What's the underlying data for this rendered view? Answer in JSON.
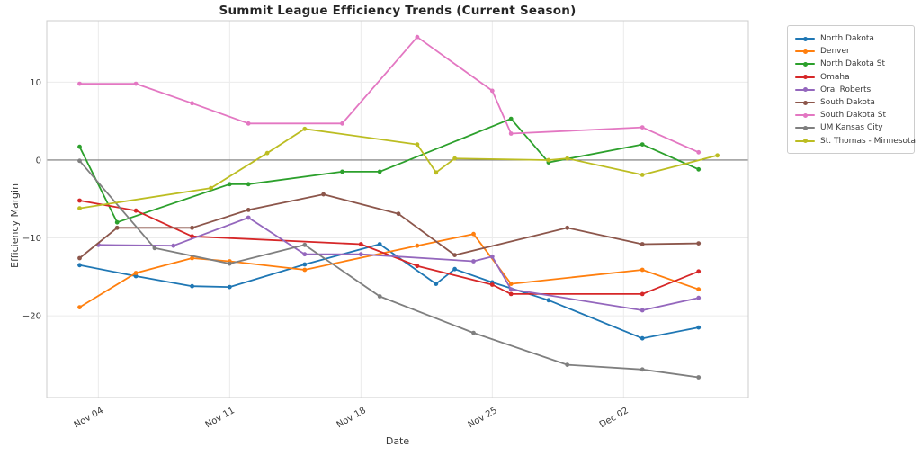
{
  "figure": {
    "background": "#ffffff",
    "plot_background": "#ffffff",
    "grid_color": "#ebebeb",
    "spine_color": "#cccccc",
    "zero_line_color": "#777777",
    "tick_label_color": "#3a3a3a",
    "title_color": "#262626"
  },
  "chart_data": {
    "type": "line",
    "title": "Summit League Efficiency Trends (Current Season)",
    "xlabel": "Date",
    "ylabel": "Efficiency Margin",
    "legend_position": "outside-top-right",
    "grid": true,
    "zero_line": true,
    "date_origin": "Nov 03",
    "xlim_days": [
      -1.75,
      35.65
    ],
    "ylim": [
      -30.5,
      17.9
    ],
    "x_ticks": [
      {
        "label": "Nov 04",
        "date": "Nov 04"
      },
      {
        "label": "Nov 11",
        "date": "Nov 11"
      },
      {
        "label": "Nov 18",
        "date": "Nov 18"
      },
      {
        "label": "Nov 25",
        "date": "Nov 25"
      },
      {
        "label": "Dec 02",
        "date": "Dec 02"
      }
    ],
    "y_ticks": [
      {
        "label": "10",
        "value": 10
      },
      {
        "label": "0",
        "value": 0
      },
      {
        "label": "−10",
        "value": -10
      },
      {
        "label": "−20",
        "value": -20
      }
    ],
    "series": [
      {
        "id": "north-dakota",
        "name": "North Dakota",
        "color": "#1f77b4",
        "points": [
          [
            "Nov 03",
            -13.5
          ],
          [
            "Nov 06",
            -14.9
          ],
          [
            "Nov 09",
            -16.2
          ],
          [
            "Nov 11",
            -16.3
          ],
          [
            "Nov 15",
            -13.4
          ],
          [
            "Nov 19",
            -10.8
          ],
          [
            "Nov 22",
            -15.9
          ],
          [
            "Nov 23",
            -14.0
          ],
          [
            "Nov 25",
            -15.7
          ],
          [
            "Nov 28",
            -18.0
          ],
          [
            "Dec 03",
            -22.9
          ],
          [
            "Dec 06",
            -21.5
          ]
        ]
      },
      {
        "id": "denver",
        "name": "Denver",
        "color": "#ff7f0e",
        "points": [
          [
            "Nov 03",
            -18.9
          ],
          [
            "Nov 06",
            -14.5
          ],
          [
            "Nov 09",
            -12.6
          ],
          [
            "Nov 11",
            -13.0
          ],
          [
            "Nov 15",
            -14.1
          ],
          [
            "Nov 21",
            -11.0
          ],
          [
            "Nov 24",
            -9.5
          ],
          [
            "Nov 26",
            -15.9
          ],
          [
            "Dec 03",
            -14.1
          ],
          [
            "Dec 06",
            -16.6
          ]
        ]
      },
      {
        "id": "north-dakota-st",
        "name": "North Dakota St",
        "color": "#2ca02c",
        "points": [
          [
            "Nov 03",
            1.7
          ],
          [
            "Nov 05",
            -8.0
          ],
          [
            "Nov 11",
            -3.1
          ],
          [
            "Nov 12",
            -3.1
          ],
          [
            "Nov 17",
            -1.5
          ],
          [
            "Nov 19",
            -1.5
          ],
          [
            "Nov 26",
            5.3
          ],
          [
            "Nov 28",
            -0.3
          ],
          [
            "Dec 03",
            2.0
          ],
          [
            "Dec 06",
            -1.2
          ]
        ]
      },
      {
        "id": "omaha",
        "name": "Omaha",
        "color": "#d62728",
        "points": [
          [
            "Nov 03",
            -5.2
          ],
          [
            "Nov 06",
            -6.5
          ],
          [
            "Nov 09",
            -9.8
          ],
          [
            "Nov 18",
            -10.8
          ],
          [
            "Nov 21",
            -13.6
          ],
          [
            "Nov 25",
            -16.0
          ],
          [
            "Nov 26",
            -17.2
          ],
          [
            "Dec 03",
            -17.2
          ],
          [
            "Dec 06",
            -14.3
          ]
        ]
      },
      {
        "id": "oral-roberts",
        "name": "Oral Roberts",
        "color": "#9467bd",
        "points": [
          [
            "Nov 04",
            -10.9
          ],
          [
            "Nov 08",
            -11.0
          ],
          [
            "Nov 12",
            -7.4
          ],
          [
            "Nov 15",
            -12.1
          ],
          [
            "Nov 18",
            -12.1
          ],
          [
            "Nov 24",
            -13.0
          ],
          [
            "Nov 25",
            -12.4
          ],
          [
            "Nov 26",
            -16.6
          ],
          [
            "Dec 03",
            -19.3
          ],
          [
            "Dec 06",
            -17.7
          ]
        ]
      },
      {
        "id": "south-dakota",
        "name": "South Dakota",
        "color": "#8c564b",
        "points": [
          [
            "Nov 03",
            -12.6
          ],
          [
            "Nov 05",
            -8.7
          ],
          [
            "Nov 09",
            -8.7
          ],
          [
            "Nov 12",
            -6.4
          ],
          [
            "Nov 16",
            -4.4
          ],
          [
            "Nov 20",
            -6.9
          ],
          [
            "Nov 23",
            -12.2
          ],
          [
            "Nov 29",
            -8.7
          ],
          [
            "Dec 03",
            -10.8
          ],
          [
            "Dec 06",
            -10.7
          ]
        ]
      },
      {
        "id": "south-dakota-st",
        "name": "South Dakota St",
        "color": "#e377c2",
        "points": [
          [
            "Nov 03",
            9.8
          ],
          [
            "Nov 06",
            9.8
          ],
          [
            "Nov 09",
            7.3
          ],
          [
            "Nov 12",
            4.7
          ],
          [
            "Nov 17",
            4.7
          ],
          [
            "Nov 21",
            15.8
          ],
          [
            "Nov 25",
            8.9
          ],
          [
            "Nov 26",
            3.4
          ],
          [
            "Dec 03",
            4.2
          ],
          [
            "Dec 06",
            1.0
          ]
        ]
      },
      {
        "id": "um-kansas-city",
        "name": "UM Kansas City",
        "color": "#7f7f7f",
        "points": [
          [
            "Nov 03",
            -0.1
          ],
          [
            "Nov 07",
            -11.3
          ],
          [
            "Nov 11",
            -13.3
          ],
          [
            "Nov 15",
            -10.9
          ],
          [
            "Nov 19",
            -17.5
          ],
          [
            "Nov 24",
            -22.2
          ],
          [
            "Nov 29",
            -26.3
          ],
          [
            "Dec 03",
            -26.9
          ],
          [
            "Dec 06",
            -27.9
          ]
        ]
      },
      {
        "id": "st-thomas-minnesota",
        "name": "St. Thomas - Minnesota",
        "color": "#bcbd22",
        "points": [
          [
            "Nov 03",
            -6.2
          ],
          [
            "Nov 10",
            -3.6
          ],
          [
            "Nov 13",
            0.9
          ],
          [
            "Nov 15",
            4.0
          ],
          [
            "Nov 21",
            2.0
          ],
          [
            "Nov 22",
            -1.6
          ],
          [
            "Nov 23",
            0.2
          ],
          [
            "Nov 28",
            0.0
          ],
          [
            "Nov 29",
            0.2
          ],
          [
            "Dec 03",
            -1.9
          ],
          [
            "Dec 07",
            0.6
          ]
        ]
      }
    ]
  }
}
